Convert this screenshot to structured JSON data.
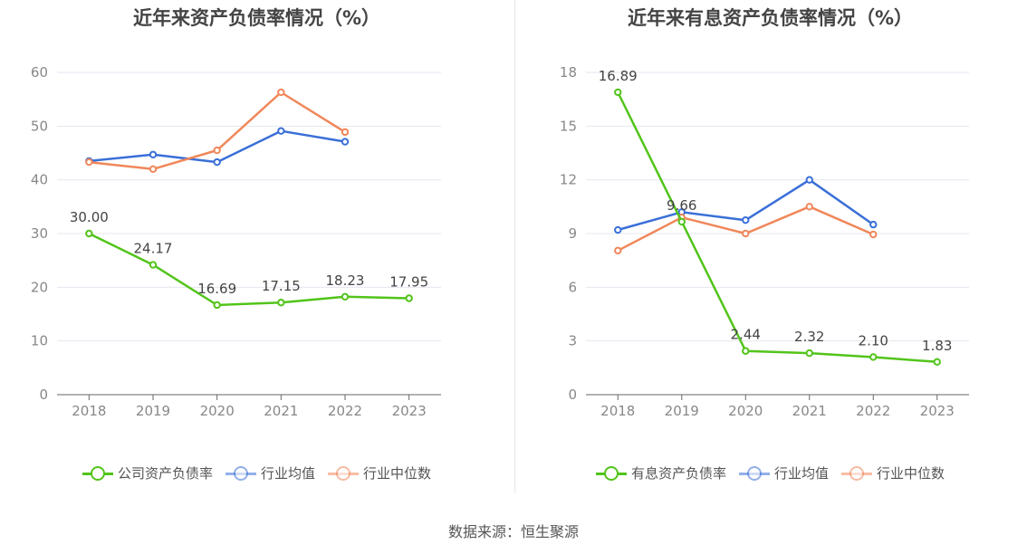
{
  "chart_data": [
    {
      "type": "line",
      "title": "近年来资产负债率情况（%）",
      "categories": [
        "2018",
        "2019",
        "2020",
        "2021",
        "2022",
        "2023"
      ],
      "ylim": [
        0,
        60
      ],
      "yticks": [
        0,
        10,
        20,
        30,
        40,
        50,
        60
      ],
      "grid": true,
      "legend_position": "bottom",
      "series": [
        {
          "name": "公司资产负债率",
          "color": "#52c41a",
          "values": [
            30.0,
            24.17,
            16.69,
            17.15,
            18.23,
            17.95
          ],
          "labels": [
            "30.00",
            "24.17",
            "16.69",
            "17.15",
            "18.23",
            "17.95"
          ]
        },
        {
          "name": "行业均值",
          "color": "#3a6fd8",
          "values": [
            43.5,
            44.7,
            43.3,
            49.1,
            47.1,
            null
          ],
          "labels": []
        },
        {
          "name": "行业中位数",
          "color": "#f0875a",
          "values": [
            43.3,
            42.0,
            45.5,
            56.3,
            48.9,
            null
          ],
          "labels": []
        }
      ]
    },
    {
      "type": "line",
      "title": "近年来有息资产负债率情况（%）",
      "categories": [
        "2018",
        "2019",
        "2020",
        "2021",
        "2022",
        "2023"
      ],
      "ylim": [
        0,
        18
      ],
      "yticks": [
        0,
        3,
        6,
        9,
        12,
        15,
        18
      ],
      "grid": true,
      "legend_position": "bottom",
      "series": [
        {
          "name": "有息资产负债率",
          "color": "#52c41a",
          "values": [
            16.89,
            9.66,
            2.44,
            2.32,
            2.1,
            1.83
          ],
          "labels": [
            "16.89",
            "9.66",
            "2.44",
            "2.32",
            "2.10",
            "1.83"
          ]
        },
        {
          "name": "行业均值",
          "color": "#3a6fd8",
          "values": [
            9.2,
            10.2,
            9.75,
            12.0,
            9.5,
            null
          ],
          "labels": []
        },
        {
          "name": "行业中位数",
          "color": "#f0875a",
          "values": [
            8.05,
            9.9,
            9.0,
            10.5,
            8.95,
            null
          ],
          "labels": []
        }
      ]
    }
  ],
  "source_text": "数据来源：恒生聚源"
}
